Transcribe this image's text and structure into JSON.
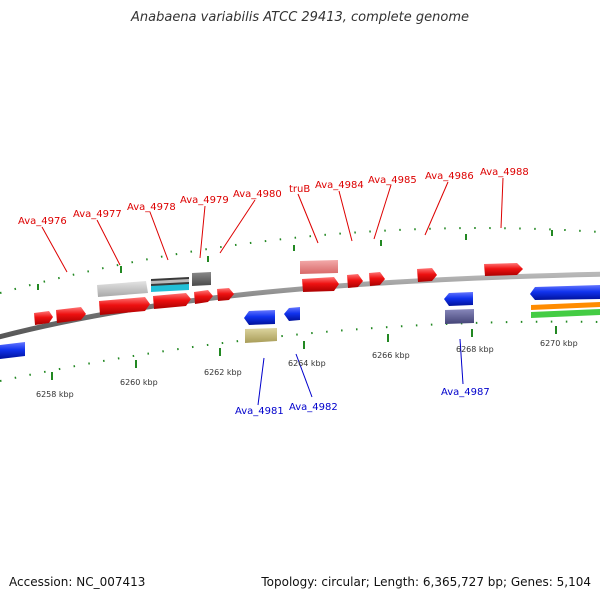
{
  "title": "Anabaena variabilis ATCC 29413, complete genome",
  "footer": {
    "accession": "Accession: NC_007413",
    "stats": "Topology: circular; Length: 6,365,727 bp; Genes: 5,104"
  },
  "colors": {
    "forward_cds": "#ee1111",
    "reverse_cds": "#1133ee",
    "forward_label": "#dd0000",
    "reverse_label": "#0000cc",
    "backbone": "#808080",
    "ticks": "#228822"
  },
  "forward_labels": [
    "Ava_4976",
    "Ava_4977",
    "Ava_4978",
    "Ava_4979",
    "Ava_4980",
    "truB",
    "Ava_4984",
    "Ava_4985",
    "Ava_4986",
    "Ava_4988"
  ],
  "reverse_labels": [
    "Ava_4981",
    "Ava_4982",
    "Ava_4987"
  ],
  "scale_labels": [
    "6258 kbp",
    "6260 kbp",
    "6262 kbp",
    "6264 kbp",
    "6266 kbp",
    "6268 kbp",
    "6270 kbp"
  ]
}
